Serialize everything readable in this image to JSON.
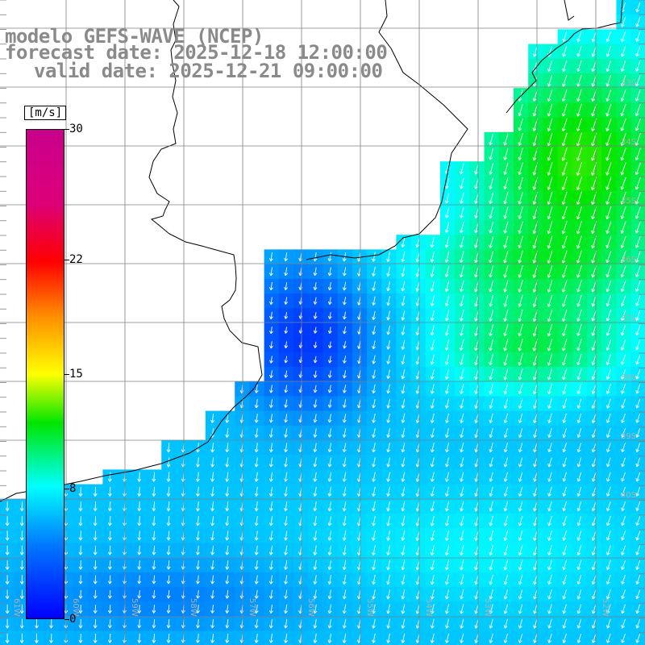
{
  "title": {
    "line1": "modelo GEFS-WAVE (NCEP)",
    "line2": "forecast date: 2025-12-18 12:00:00",
    "line3": "valid date: 2025-12-21 09:00:00"
  },
  "colorbar": {
    "unit": "[m/s]",
    "min": 0,
    "max": 30,
    "ticks": [
      "30",
      "22",
      "15",
      "8",
      "0"
    ]
  },
  "map": {
    "lat_labels": [
      "33S",
      "34S",
      "35S",
      "36S",
      "37S",
      "38S",
      "39S",
      "40S"
    ],
    "lon_labels": [
      "61W",
      "60W",
      "59W",
      "58W",
      "57W",
      "56W",
      "55W",
      "54W",
      "53W",
      "52W"
    ],
    "grid_lines": true
  },
  "colors": {
    "land": "#ffffff",
    "coastline": "#000000",
    "grid": "#808080",
    "title_text": "#8a8a8a",
    "arrows": "#ffffff"
  }
}
